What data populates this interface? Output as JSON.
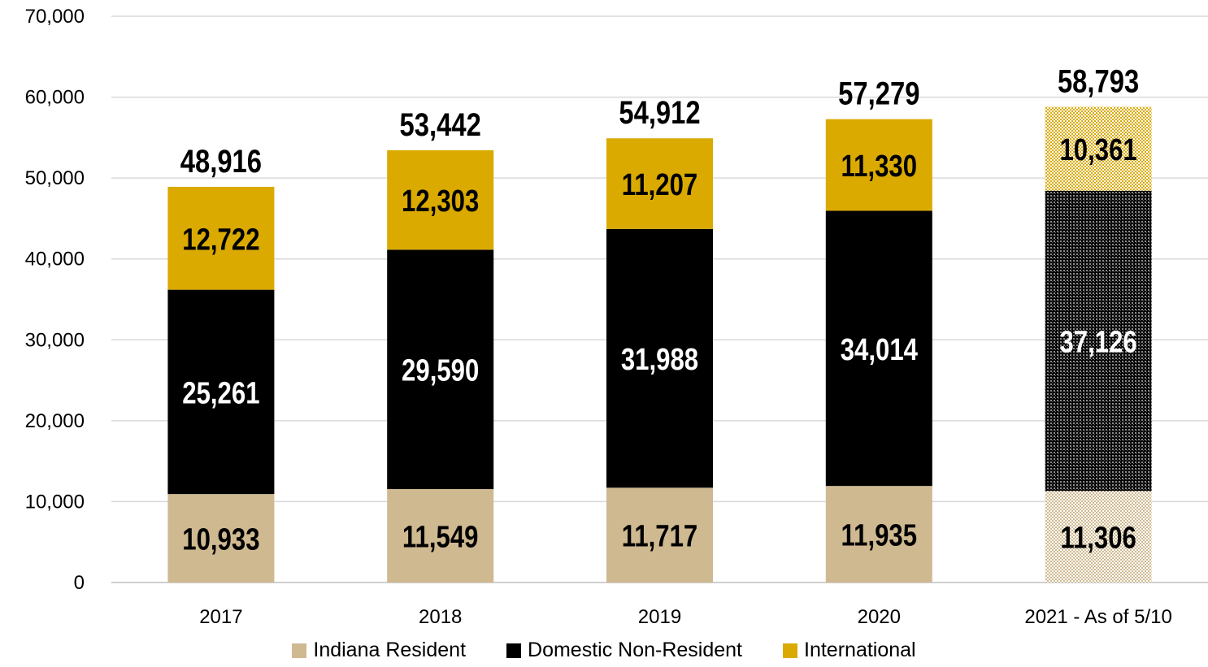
{
  "chart_data": {
    "type": "bar",
    "stacked": true,
    "categories": [
      "2017",
      "2018",
      "2019",
      "2020",
      "2021 - As of 5/10"
    ],
    "series": [
      {
        "name": "Indiana Resident",
        "color": "#CFB991",
        "label_color": "#000000",
        "values": [
          10933,
          11549,
          11717,
          11935,
          11306
        ],
        "labels": [
          "10,933",
          "11,549",
          "11,717",
          "11,935",
          "11,306"
        ]
      },
      {
        "name": "Domestic Non-Resident",
        "color": "#000000",
        "label_color": "#FFFFFF",
        "values": [
          25261,
          29590,
          31988,
          34014,
          37126
        ],
        "labels": [
          "25,261",
          "29,590",
          "31,988",
          "34,014",
          "37,126"
        ]
      },
      {
        "name": "International",
        "color": "#DAAA00",
        "label_color": "#000000",
        "values": [
          12722,
          12303,
          11207,
          11330,
          10361
        ],
        "labels": [
          "12,722",
          "12,303",
          "11,207",
          "11,330",
          "10,361"
        ]
      }
    ],
    "totals": [
      "48,916",
      "53,442",
      "54,912",
      "57,279",
      "58,793"
    ],
    "totals_values": [
      48916,
      53442,
      54912,
      57279,
      58793
    ],
    "ylim": [
      0,
      70000
    ],
    "yticks": [
      "0",
      "10,000",
      "20,000",
      "30,000",
      "40,000",
      "50,000",
      "60,000",
      "70,000"
    ],
    "ytick_values": [
      0,
      10000,
      20000,
      30000,
      40000,
      50000,
      60000,
      70000
    ],
    "grid": true,
    "patterned_category": "2021 - As of 5/10",
    "legend_position": "bottom"
  }
}
